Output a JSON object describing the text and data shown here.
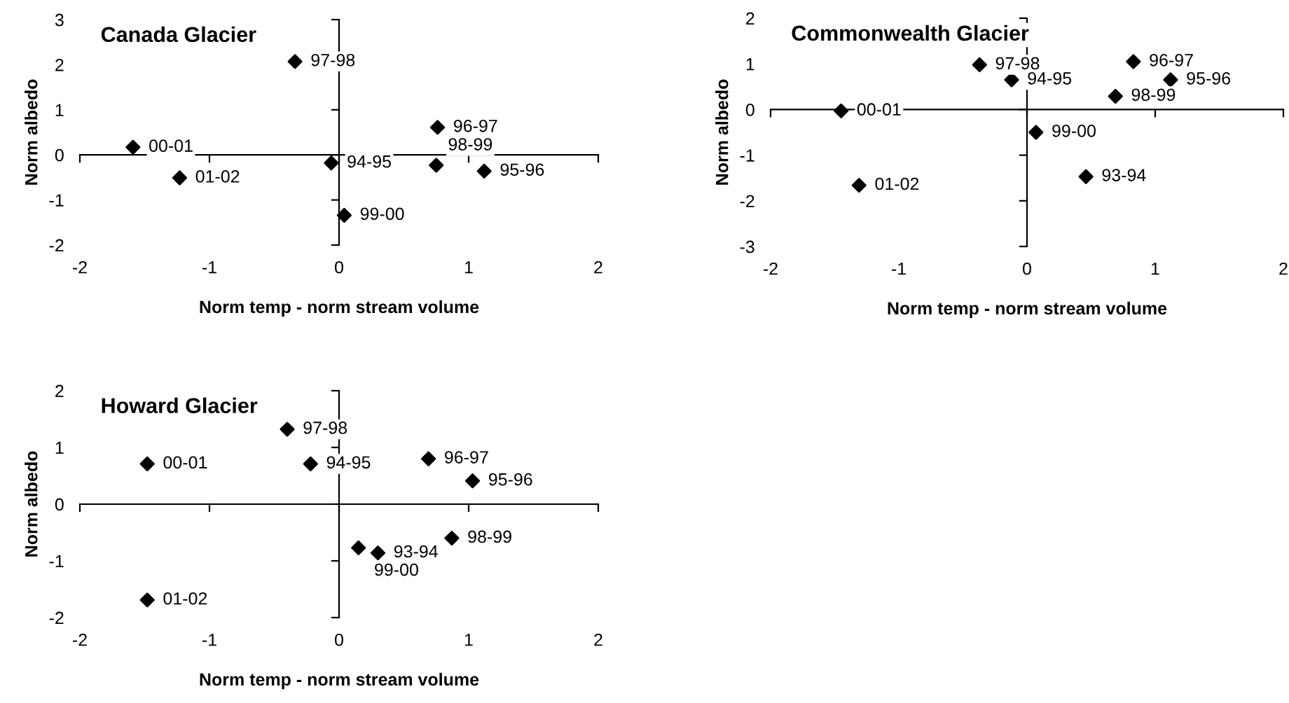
{
  "chart_data": [
    {
      "type": "scatter",
      "title": "Canada Glacier",
      "xlabel": "Norm temp - norm stream volume",
      "ylabel": "Norm albedo",
      "xlim": [
        -2,
        2
      ],
      "ylim": [
        -2,
        3
      ],
      "xticks": [
        -2,
        -1,
        0,
        1,
        2
      ],
      "yticks": [
        -2,
        -1,
        0,
        1,
        2,
        3
      ],
      "marker": "diamond",
      "series": [
        {
          "color": "#000000",
          "x": [
            -0.34,
            -1.59,
            -1.23,
            -0.06,
            0.04,
            0.76,
            0.75,
            1.12
          ],
          "values": [
            2.07,
            0.17,
            -0.51,
            -0.18,
            -1.34,
            0.61,
            -0.23,
            -0.36
          ]
        }
      ],
      "annotations": [
        {
          "text": "97-98",
          "x": -0.34,
          "y": 2.07
        },
        {
          "text": "00-01",
          "x": -1.59,
          "y": 0.17
        },
        {
          "text": "01-02",
          "x": -1.23,
          "y": -0.51
        },
        {
          "text": "94-95",
          "x": -0.06,
          "y": -0.18
        },
        {
          "text": "99-00",
          "x": 0.04,
          "y": -1.34
        },
        {
          "text": "96-97",
          "x": 0.76,
          "y": 0.61
        },
        {
          "text": "98-99",
          "x": 0.75,
          "y": -0.23
        },
        {
          "text": "95-96",
          "x": 1.12,
          "y": -0.36
        }
      ]
    },
    {
      "type": "scatter",
      "title": "Commonwealth Glacier",
      "xlabel": "Norm temp - norm stream volume",
      "ylabel": "Norm albedo",
      "xlim": [
        -2,
        2
      ],
      "ylim": [
        -3,
        2
      ],
      "xticks": [
        -2,
        -1,
        0,
        1,
        2
      ],
      "yticks": [
        -3,
        -2,
        -1,
        0,
        1,
        2
      ],
      "marker": "diamond",
      "series": [
        {
          "color": "#000000",
          "x": [
            -0.37,
            -0.12,
            0.83,
            1.12,
            0.69,
            -1.45,
            0.07,
            0.46,
            -1.31
          ],
          "values": [
            0.98,
            0.65,
            1.05,
            0.65,
            0.29,
            -0.03,
            -0.5,
            -1.47,
            -1.66
          ]
        }
      ],
      "annotations": [
        {
          "text": "97-98",
          "x": -0.37,
          "y": 0.98
        },
        {
          "text": "94-95",
          "x": -0.12,
          "y": 0.65
        },
        {
          "text": "96-97",
          "x": 0.83,
          "y": 1.05
        },
        {
          "text": "95-96",
          "x": 1.12,
          "y": 0.65
        },
        {
          "text": "98-99",
          "x": 0.69,
          "y": 0.29
        },
        {
          "text": "00-01",
          "x": -1.45,
          "y": -0.03
        },
        {
          "text": "99-00",
          "x": 0.07,
          "y": -0.5
        },
        {
          "text": "93-94",
          "x": 0.46,
          "y": -1.47
        },
        {
          "text": "01-02",
          "x": -1.31,
          "y": -1.66
        }
      ]
    },
    {
      "type": "scatter",
      "title": "Howard Glacier",
      "xlabel": "Norm temp - norm stream volume",
      "ylabel": "Norm albedo",
      "xlim": [
        -2,
        2
      ],
      "ylim": [
        -2,
        2
      ],
      "xticks": [
        -2,
        -1,
        0,
        1,
        2
      ],
      "yticks": [
        -2,
        -1,
        0,
        1,
        2
      ],
      "marker": "diamond",
      "series": [
        {
          "color": "#000000",
          "x": [
            -0.4,
            -1.48,
            -0.22,
            0.69,
            1.03,
            0.87,
            0.15,
            0.3,
            -1.48
          ],
          "values": [
            1.32,
            0.71,
            0.71,
            0.8,
            0.41,
            -0.6,
            -0.77,
            -0.86,
            -1.69
          ]
        }
      ],
      "annotations": [
        {
          "text": "97-98",
          "x": -0.4,
          "y": 1.32
        },
        {
          "text": "00-01",
          "x": -1.48,
          "y": 0.71
        },
        {
          "text": "94-95",
          "x": -0.22,
          "y": 0.71
        },
        {
          "text": "96-97",
          "x": 0.69,
          "y": 0.8
        },
        {
          "text": "95-96",
          "x": 1.03,
          "y": 0.41
        },
        {
          "text": "98-99",
          "x": 0.87,
          "y": -0.6
        },
        {
          "text": "99-00",
          "x": 0.15,
          "y": -0.77
        },
        {
          "text": "93-94",
          "x": 0.3,
          "y": -0.86
        },
        {
          "text": "01-02",
          "x": -1.48,
          "y": -1.69
        }
      ]
    }
  ]
}
